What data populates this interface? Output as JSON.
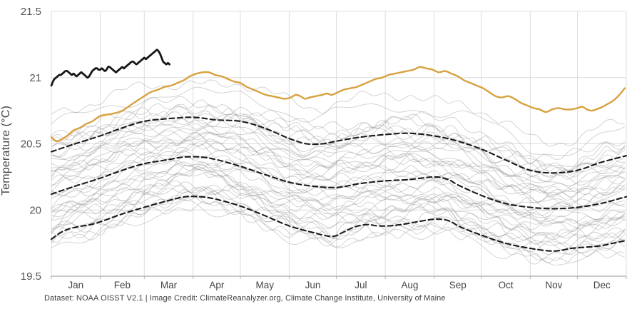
{
  "caption": {
    "text": "Dataset: NOAA OISST V2.1 | Image Credit: ClimateReanalyzer.org, Climate Change Institute, University of Maine"
  },
  "colors": {
    "background": "#ffffff",
    "grid": "#dcdcdc",
    "axis_bottom": "#ababab",
    "tick": "#b0b0b0",
    "y_tick_text": "#555555",
    "x_tick_text": "#444444",
    "orange_line": "#d8a13e",
    "black_line": "#161616",
    "dashed_line": "#1a1a1a",
    "gray_years": "#8f8f8f"
  },
  "chart_data": {
    "type": "line",
    "title": "",
    "xlabel": "",
    "ylabel": "Temperature (°C)",
    "ylim": [
      19.5,
      21.5
    ],
    "yticks": [
      19.5,
      20,
      20.5,
      21,
      21.5
    ],
    "ytick_labels": [
      "19.5",
      "20",
      "20.5",
      "21",
      "21.5"
    ],
    "grid": true,
    "legend_position": "none",
    "months": [
      "Jan",
      "Feb",
      "Mar",
      "Apr",
      "May",
      "Jun",
      "Jul",
      "Aug",
      "Sep",
      "Oct",
      "Nov",
      "Dec"
    ],
    "month_start_days": [
      0,
      31,
      59,
      90,
      120,
      151,
      181,
      212,
      243,
      273,
      304,
      334
    ],
    "days_in_year": 365,
    "series": [
      {
        "name": "black-line-partial-year",
        "style": "solid",
        "color": "#161616",
        "width": 2.8,
        "points": [
          [
            0,
            20.94
          ],
          [
            1,
            20.97
          ],
          [
            2,
            20.99
          ],
          [
            3,
            21.0
          ],
          [
            4,
            21.01
          ],
          [
            5,
            21.02
          ],
          [
            6,
            21.02
          ],
          [
            7,
            21.03
          ],
          [
            8,
            21.04
          ],
          [
            9,
            21.05
          ],
          [
            10,
            21.05
          ],
          [
            11,
            21.04
          ],
          [
            12,
            21.03
          ],
          [
            13,
            21.02
          ],
          [
            14,
            21.03
          ],
          [
            15,
            21.02
          ],
          [
            16,
            21.01
          ],
          [
            17,
            21.02
          ],
          [
            18,
            21.03
          ],
          [
            19,
            21.04
          ],
          [
            20,
            21.03
          ],
          [
            21,
            21.02
          ],
          [
            22,
            21.01
          ],
          [
            23,
            21.0
          ],
          [
            24,
            21.01
          ],
          [
            25,
            21.03
          ],
          [
            26,
            21.05
          ],
          [
            27,
            21.06
          ],
          [
            28,
            21.07
          ],
          [
            29,
            21.07
          ],
          [
            30,
            21.06
          ],
          [
            31,
            21.06
          ],
          [
            32,
            21.07
          ],
          [
            33,
            21.06
          ],
          [
            34,
            21.05
          ],
          [
            35,
            21.06
          ],
          [
            36,
            21.08
          ],
          [
            37,
            21.08
          ],
          [
            38,
            21.07
          ],
          [
            39,
            21.06
          ],
          [
            40,
            21.05
          ],
          [
            41,
            21.04
          ],
          [
            42,
            21.05
          ],
          [
            43,
            21.06
          ],
          [
            44,
            21.07
          ],
          [
            45,
            21.08
          ],
          [
            46,
            21.07
          ],
          [
            47,
            21.08
          ],
          [
            48,
            21.09
          ],
          [
            49,
            21.1
          ],
          [
            50,
            21.11
          ],
          [
            51,
            21.12
          ],
          [
            52,
            21.12
          ],
          [
            53,
            21.11
          ],
          [
            54,
            21.1
          ],
          [
            55,
            21.11
          ],
          [
            56,
            21.12
          ],
          [
            57,
            21.13
          ],
          [
            58,
            21.14
          ],
          [
            59,
            21.15
          ],
          [
            60,
            21.14
          ],
          [
            61,
            21.15
          ],
          [
            62,
            21.16
          ],
          [
            63,
            21.17
          ],
          [
            64,
            21.18
          ],
          [
            65,
            21.19
          ],
          [
            66,
            21.2
          ],
          [
            67,
            21.21
          ],
          [
            68,
            21.2
          ],
          [
            69,
            21.18
          ],
          [
            70,
            21.15
          ],
          [
            71,
            21.12
          ],
          [
            72,
            21.11
          ],
          [
            73,
            21.1
          ],
          [
            74,
            21.11
          ],
          [
            75,
            21.1
          ]
        ]
      },
      {
        "name": "orange-line-full-year",
        "style": "solid",
        "color": "#d8a13e",
        "width": 2.4,
        "points": [
          [
            0,
            20.55
          ],
          [
            3,
            20.52
          ],
          [
            6,
            20.53
          ],
          [
            10,
            20.56
          ],
          [
            14,
            20.6
          ],
          [
            18,
            20.62
          ],
          [
            22,
            20.65
          ],
          [
            26,
            20.67
          ],
          [
            31,
            20.71
          ],
          [
            35,
            20.72
          ],
          [
            40,
            20.73
          ],
          [
            45,
            20.75
          ],
          [
            50,
            20.79
          ],
          [
            55,
            20.83
          ],
          [
            59,
            20.86
          ],
          [
            63,
            20.89
          ],
          [
            68,
            20.91
          ],
          [
            72,
            20.93
          ],
          [
            76,
            20.94
          ],
          [
            80,
            20.96
          ],
          [
            84,
            20.98
          ],
          [
            88,
            21.01
          ],
          [
            92,
            21.03
          ],
          [
            96,
            21.04
          ],
          [
            100,
            21.04
          ],
          [
            104,
            21.02
          ],
          [
            108,
            21.01
          ],
          [
            112,
            20.99
          ],
          [
            116,
            20.97
          ],
          [
            120,
            20.96
          ],
          [
            124,
            20.93
          ],
          [
            128,
            20.91
          ],
          [
            132,
            20.89
          ],
          [
            136,
            20.87
          ],
          [
            140,
            20.86
          ],
          [
            144,
            20.85
          ],
          [
            148,
            20.84
          ],
          [
            152,
            20.85
          ],
          [
            155,
            20.87
          ],
          [
            158,
            20.86
          ],
          [
            161,
            20.84
          ],
          [
            164,
            20.85
          ],
          [
            168,
            20.86
          ],
          [
            172,
            20.87
          ],
          [
            175,
            20.88
          ],
          [
            178,
            20.87
          ],
          [
            182,
            20.89
          ],
          [
            186,
            20.91
          ],
          [
            190,
            20.92
          ],
          [
            194,
            20.93
          ],
          [
            198,
            20.95
          ],
          [
            202,
            20.97
          ],
          [
            206,
            20.99
          ],
          [
            210,
            21.0
          ],
          [
            214,
            21.02
          ],
          [
            218,
            21.03
          ],
          [
            222,
            21.04
          ],
          [
            226,
            21.05
          ],
          [
            230,
            21.06
          ],
          [
            234,
            21.08
          ],
          [
            238,
            21.07
          ],
          [
            242,
            21.06
          ],
          [
            246,
            21.04
          ],
          [
            250,
            21.05
          ],
          [
            254,
            21.03
          ],
          [
            258,
            21.01
          ],
          [
            262,
            20.98
          ],
          [
            266,
            20.96
          ],
          [
            270,
            20.94
          ],
          [
            274,
            20.92
          ],
          [
            278,
            20.89
          ],
          [
            282,
            20.86
          ],
          [
            286,
            20.85
          ],
          [
            290,
            20.86
          ],
          [
            294,
            20.84
          ],
          [
            298,
            20.81
          ],
          [
            302,
            20.79
          ],
          [
            306,
            20.77
          ],
          [
            310,
            20.76
          ],
          [
            314,
            20.74
          ],
          [
            318,
            20.76
          ],
          [
            322,
            20.77
          ],
          [
            326,
            20.76
          ],
          [
            330,
            20.76
          ],
          [
            334,
            20.77
          ],
          [
            337,
            20.78
          ],
          [
            340,
            20.76
          ],
          [
            343,
            20.75
          ],
          [
            346,
            20.76
          ],
          [
            350,
            20.78
          ],
          [
            353,
            20.8
          ],
          [
            356,
            20.82
          ],
          [
            359,
            20.85
          ],
          [
            362,
            20.89
          ],
          [
            364,
            20.92
          ]
        ]
      },
      {
        "name": "dashed-upper-plus-2-sigma",
        "style": "dashed",
        "color": "#1a1a1a",
        "width": 2.1,
        "points": [
          [
            0,
            20.44
          ],
          [
            15,
            20.5
          ],
          [
            31,
            20.56
          ],
          [
            45,
            20.62
          ],
          [
            59,
            20.67
          ],
          [
            74,
            20.69
          ],
          [
            90,
            20.7
          ],
          [
            105,
            20.68
          ],
          [
            120,
            20.67
          ],
          [
            135,
            20.62
          ],
          [
            151,
            20.54
          ],
          [
            162,
            20.5
          ],
          [
            172,
            20.5
          ],
          [
            181,
            20.52
          ],
          [
            196,
            20.55
          ],
          [
            212,
            20.57
          ],
          [
            227,
            20.58
          ],
          [
            243,
            20.56
          ],
          [
            258,
            20.52
          ],
          [
            273,
            20.46
          ],
          [
            288,
            20.38
          ],
          [
            304,
            20.3
          ],
          [
            319,
            20.28
          ],
          [
            334,
            20.3
          ],
          [
            349,
            20.36
          ],
          [
            365,
            20.41
          ]
        ]
      },
      {
        "name": "dashed-mean",
        "style": "dashed",
        "color": "#1a1a1a",
        "width": 2.1,
        "points": [
          [
            0,
            20.12
          ],
          [
            15,
            20.18
          ],
          [
            31,
            20.24
          ],
          [
            45,
            20.3
          ],
          [
            59,
            20.35
          ],
          [
            74,
            20.38
          ],
          [
            84,
            20.4
          ],
          [
            95,
            20.4
          ],
          [
            105,
            20.38
          ],
          [
            120,
            20.33
          ],
          [
            135,
            20.27
          ],
          [
            151,
            20.21
          ],
          [
            166,
            20.18
          ],
          [
            181,
            20.17
          ],
          [
            196,
            20.2
          ],
          [
            212,
            20.22
          ],
          [
            227,
            20.23
          ],
          [
            243,
            20.25
          ],
          [
            252,
            20.23
          ],
          [
            258,
            20.19
          ],
          [
            273,
            20.11
          ],
          [
            288,
            20.05
          ],
          [
            304,
            20.02
          ],
          [
            319,
            20.01
          ],
          [
            334,
            20.02
          ],
          [
            349,
            20.05
          ],
          [
            365,
            20.1
          ]
        ]
      },
      {
        "name": "dashed-lower-minus-2-sigma",
        "style": "dashed",
        "color": "#1a1a1a",
        "width": 2.1,
        "points": [
          [
            0,
            19.78
          ],
          [
            6,
            19.83
          ],
          [
            12,
            19.86
          ],
          [
            20,
            19.88
          ],
          [
            25,
            19.89
          ],
          [
            31,
            19.91
          ],
          [
            45,
            19.97
          ],
          [
            59,
            20.02
          ],
          [
            74,
            20.07
          ],
          [
            85,
            20.1
          ],
          [
            95,
            20.1
          ],
          [
            105,
            20.08
          ],
          [
            120,
            20.03
          ],
          [
            135,
            19.96
          ],
          [
            151,
            19.88
          ],
          [
            166,
            19.83
          ],
          [
            178,
            19.8
          ],
          [
            185,
            19.83
          ],
          [
            192,
            19.87
          ],
          [
            200,
            19.89
          ],
          [
            207,
            19.88
          ],
          [
            214,
            19.88
          ],
          [
            222,
            19.89
          ],
          [
            232,
            19.91
          ],
          [
            243,
            19.93
          ],
          [
            252,
            19.92
          ],
          [
            260,
            19.87
          ],
          [
            273,
            19.81
          ],
          [
            288,
            19.75
          ],
          [
            304,
            19.71
          ],
          [
            319,
            19.69
          ],
          [
            330,
            19.71
          ],
          [
            340,
            19.72
          ],
          [
            349,
            19.73
          ],
          [
            357,
            19.75
          ],
          [
            365,
            19.77
          ]
        ]
      }
    ],
    "background_years": {
      "count": 42,
      "extra_offsets": [
        1.35,
        1.6,
        1.85
      ],
      "color": "#8f8f8f",
      "opacity": 0.38,
      "width": 1,
      "seed": 11
    }
  }
}
